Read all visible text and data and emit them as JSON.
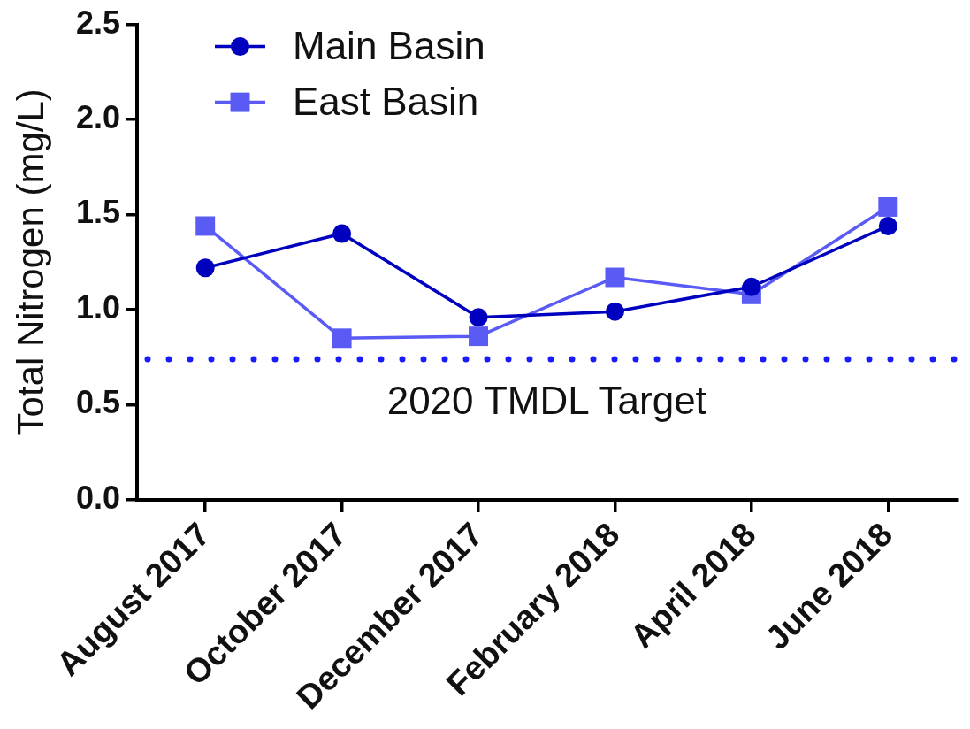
{
  "chart_data": {
    "type": "line",
    "ylabel": "Total Nitrogen (mg/L)",
    "categories": [
      "August 2017",
      "October 2017",
      "December 2017",
      "February 2018",
      "April 2018",
      "June 2018"
    ],
    "series": [
      {
        "name": "Main Basin",
        "color": "#0000bf",
        "marker": "circle",
        "values": [
          1.22,
          1.4,
          0.96,
          0.99,
          1.12,
          1.44
        ]
      },
      {
        "name": "East Basin",
        "color": "#5a5af5",
        "marker": "square",
        "values": [
          1.44,
          0.85,
          0.86,
          1.17,
          1.08,
          1.54
        ]
      }
    ],
    "ylim": [
      0,
      2.5
    ],
    "yticks": [
      {
        "value": 0,
        "label": "0.0"
      },
      {
        "value": 0.5,
        "label": "0.5"
      },
      {
        "value": 1,
        "label": "1.0"
      },
      {
        "value": 1.5,
        "label": "1.5"
      },
      {
        "value": 2,
        "label": "2.0"
      },
      {
        "value": 2.5,
        "label": "2.5"
      }
    ],
    "ref_lines": [
      {
        "axis": "y",
        "value": 0.74,
        "label": "2020 TMDL Target",
        "color": "#1a1aff",
        "line_style": "dotted"
      }
    ],
    "legend": "top left",
    "grid": false,
    "line_style": "solid"
  }
}
